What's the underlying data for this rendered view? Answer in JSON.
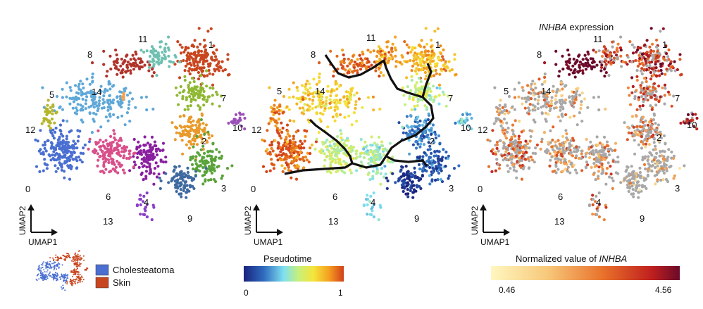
{
  "chart_data": [
    {
      "type": "scatter",
      "panel": "clusters",
      "xlabel": "UMAP1",
      "ylabel": "UMAP2",
      "clusters": [
        {
          "id": "0",
          "color": "#4a6fd1",
          "center": [
            0.17,
            0.6
          ],
          "spread": [
            0.06,
            0.07
          ],
          "n": 180
        },
        {
          "id": "1",
          "color": "#c8461f",
          "center": [
            0.78,
            0.17
          ],
          "spread": [
            0.07,
            0.06
          ],
          "n": 150
        },
        {
          "id": "2",
          "color": "#e89a2a",
          "center": [
            0.74,
            0.5
          ],
          "spread": [
            0.045,
            0.06
          ],
          "n": 110
        },
        {
          "id": "3",
          "color": "#5aa33a",
          "center": [
            0.81,
            0.65
          ],
          "spread": [
            0.045,
            0.06
          ],
          "n": 100
        },
        {
          "id": "4",
          "color": "#8a1fa0",
          "center": [
            0.55,
            0.63
          ],
          "spread": [
            0.04,
            0.07
          ],
          "n": 110
        },
        {
          "id": "5",
          "color": "#5fa8d8",
          "center": [
            0.32,
            0.36
          ],
          "spread": [
            0.11,
            0.06
          ],
          "n": 180
        },
        {
          "id": "6",
          "color": "#d94f8a",
          "center": [
            0.39,
            0.61
          ],
          "spread": [
            0.055,
            0.06
          ],
          "n": 140
        },
        {
          "id": "7",
          "color": "#8fb833",
          "center": [
            0.75,
            0.32
          ],
          "spread": [
            0.06,
            0.05
          ],
          "n": 90
        },
        {
          "id": "8",
          "color": "#b0332a",
          "center": [
            0.46,
            0.19
          ],
          "spread": [
            0.07,
            0.035
          ],
          "n": 80
        },
        {
          "id": "9",
          "color": "#3f6aa0",
          "center": [
            0.69,
            0.74
          ],
          "spread": [
            0.05,
            0.045
          ],
          "n": 90
        },
        {
          "id": "10",
          "color": "#9a4fb8",
          "center": [
            0.93,
            0.46
          ],
          "spread": [
            0.02,
            0.03
          ],
          "n": 25
        },
        {
          "id": "11",
          "color": "#6fc0b0",
          "center": [
            0.6,
            0.15
          ],
          "spread": [
            0.045,
            0.04
          ],
          "n": 60
        },
        {
          "id": "12",
          "color": "#b5b52a",
          "center": [
            0.12,
            0.42
          ],
          "spread": [
            0.02,
            0.04
          ],
          "n": 35
        },
        {
          "id": "13",
          "color": "#8a3ec8",
          "center": [
            0.53,
            0.86
          ],
          "spread": [
            0.02,
            0.04
          ],
          "n": 20
        },
        {
          "id": "14",
          "color": "#f0a050",
          "center": [
            0.44,
            0.34
          ],
          "spread": [
            0.005,
            0.01
          ],
          "n": 6
        }
      ]
    },
    {
      "type": "scatter",
      "panel": "pseudotime",
      "xlabel": "UMAP1",
      "ylabel": "UMAP2",
      "colorbar": {
        "title": "Pseudotime",
        "min": "0",
        "max": "1"
      }
    },
    {
      "type": "scatter",
      "panel": "INHBA",
      "title_gene": "INHBA",
      "title_suffix": " expression",
      "xlabel": "UMAP1",
      "ylabel": "UMAP2",
      "colorbar": {
        "title_prefix": "Normalized value of ",
        "title_gene": "INHBA",
        "min": "0.46",
        "max": "4.56"
      }
    }
  ],
  "legend": {
    "entries": [
      {
        "label": "Cholesteatoma",
        "color": "#4a6fd1"
      },
      {
        "label": "Skin",
        "color": "#c8461f"
      }
    ]
  },
  "labels": {
    "0": "0",
    "1": "1",
    "2": "2",
    "3": "3",
    "4": "4",
    "5": "5",
    "6": "6",
    "7": "7",
    "8": "8",
    "9": "9",
    "10": "10",
    "11": "11",
    "12": "12",
    "13": "13",
    "14": "14"
  },
  "axes": {
    "x": "UMAP1",
    "y": "UMAP2"
  }
}
